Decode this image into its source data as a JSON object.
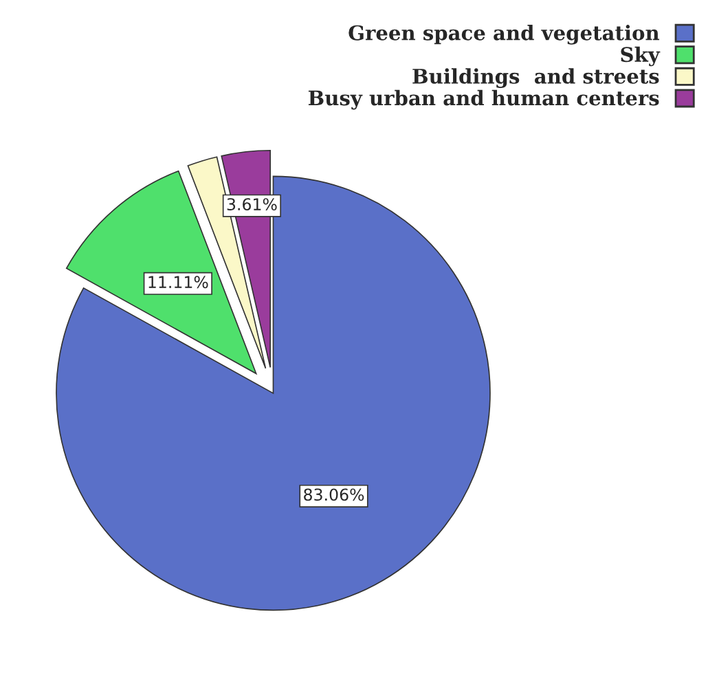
{
  "chart_data": {
    "type": "pie",
    "categories": [
      "Green space and vegetation",
      "Sky",
      "Buildings  and streets",
      "Busy urban and human centers"
    ],
    "values": [
      83.06,
      11.11,
      2.22,
      3.61
    ],
    "colors": [
      "#5a70c8",
      "#4fe06c",
      "#fbf8c8",
      "#9a3c9c"
    ],
    "value_labels": [
      "83.06%",
      "11.11%",
      null,
      "3.61%"
    ],
    "legend": "top right"
  }
}
